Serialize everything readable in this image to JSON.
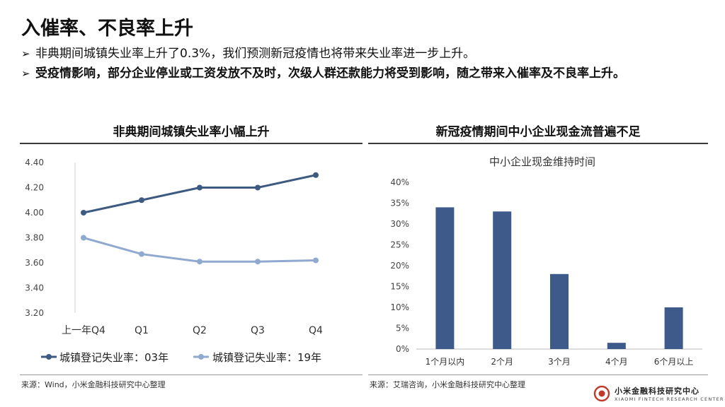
{
  "slide": {
    "title": "入催率、不良率上升",
    "bullets": [
      "非典期间城镇失业率上升了0.3%，我们预测新冠疫情也将带来失业率进一步上升。",
      "受疫情影响，部分企业停业或工资发放不及时，次级人群还款能力将受到影响，随之带来入催率及不良率上升。"
    ],
    "bullet_marker": "➢"
  },
  "left_panel": {
    "title": "非典期间城镇失业率小幅上升",
    "source": "来源：Wind，小米金融科技研究中心整理"
  },
  "right_panel": {
    "title": "新冠疫情期间中小企业现金流普遍不足",
    "source": "来源：艾瑞咨询，小米金融科技研究中心整理"
  },
  "logo": {
    "cn": "小米金融科技研究中心",
    "en": "XIAOMI FINTECH RESEARCH CENTER",
    "color": "#c0392b"
  },
  "chart_data": [
    {
      "type": "line",
      "title": "",
      "categories": [
        "上一年Q4",
        "Q1",
        "Q2",
        "Q3",
        "Q4"
      ],
      "series": [
        {
          "name": "城镇登记失业率：03年",
          "values": [
            4.0,
            4.1,
            4.2,
            4.2,
            4.3
          ],
          "color": "#3d5a80"
        },
        {
          "name": "城镇登记失业率：19年",
          "values": [
            3.8,
            3.67,
            3.61,
            3.61,
            3.62
          ],
          "color": "#8fa9cf"
        }
      ],
      "ylim": [
        3.2,
        4.4
      ],
      "yticks": [
        "3.20",
        "3.40",
        "3.60",
        "3.80",
        "4.00",
        "4.20",
        "4.40"
      ],
      "grid": false,
      "legend": "bottom"
    },
    {
      "type": "bar",
      "title": "中小企业现金维持时间",
      "categories": [
        "1个月以内",
        "2个月",
        "3个月",
        "4个月",
        "6个月以上"
      ],
      "values": [
        34,
        33,
        18,
        1.5,
        10
      ],
      "ylim": [
        0,
        40
      ],
      "yticks": [
        "0%",
        "5%",
        "10%",
        "15%",
        "20%",
        "25%",
        "30%",
        "35%",
        "40%"
      ],
      "color": "#3d5a8a",
      "grid": false,
      "legend": "none"
    }
  ]
}
